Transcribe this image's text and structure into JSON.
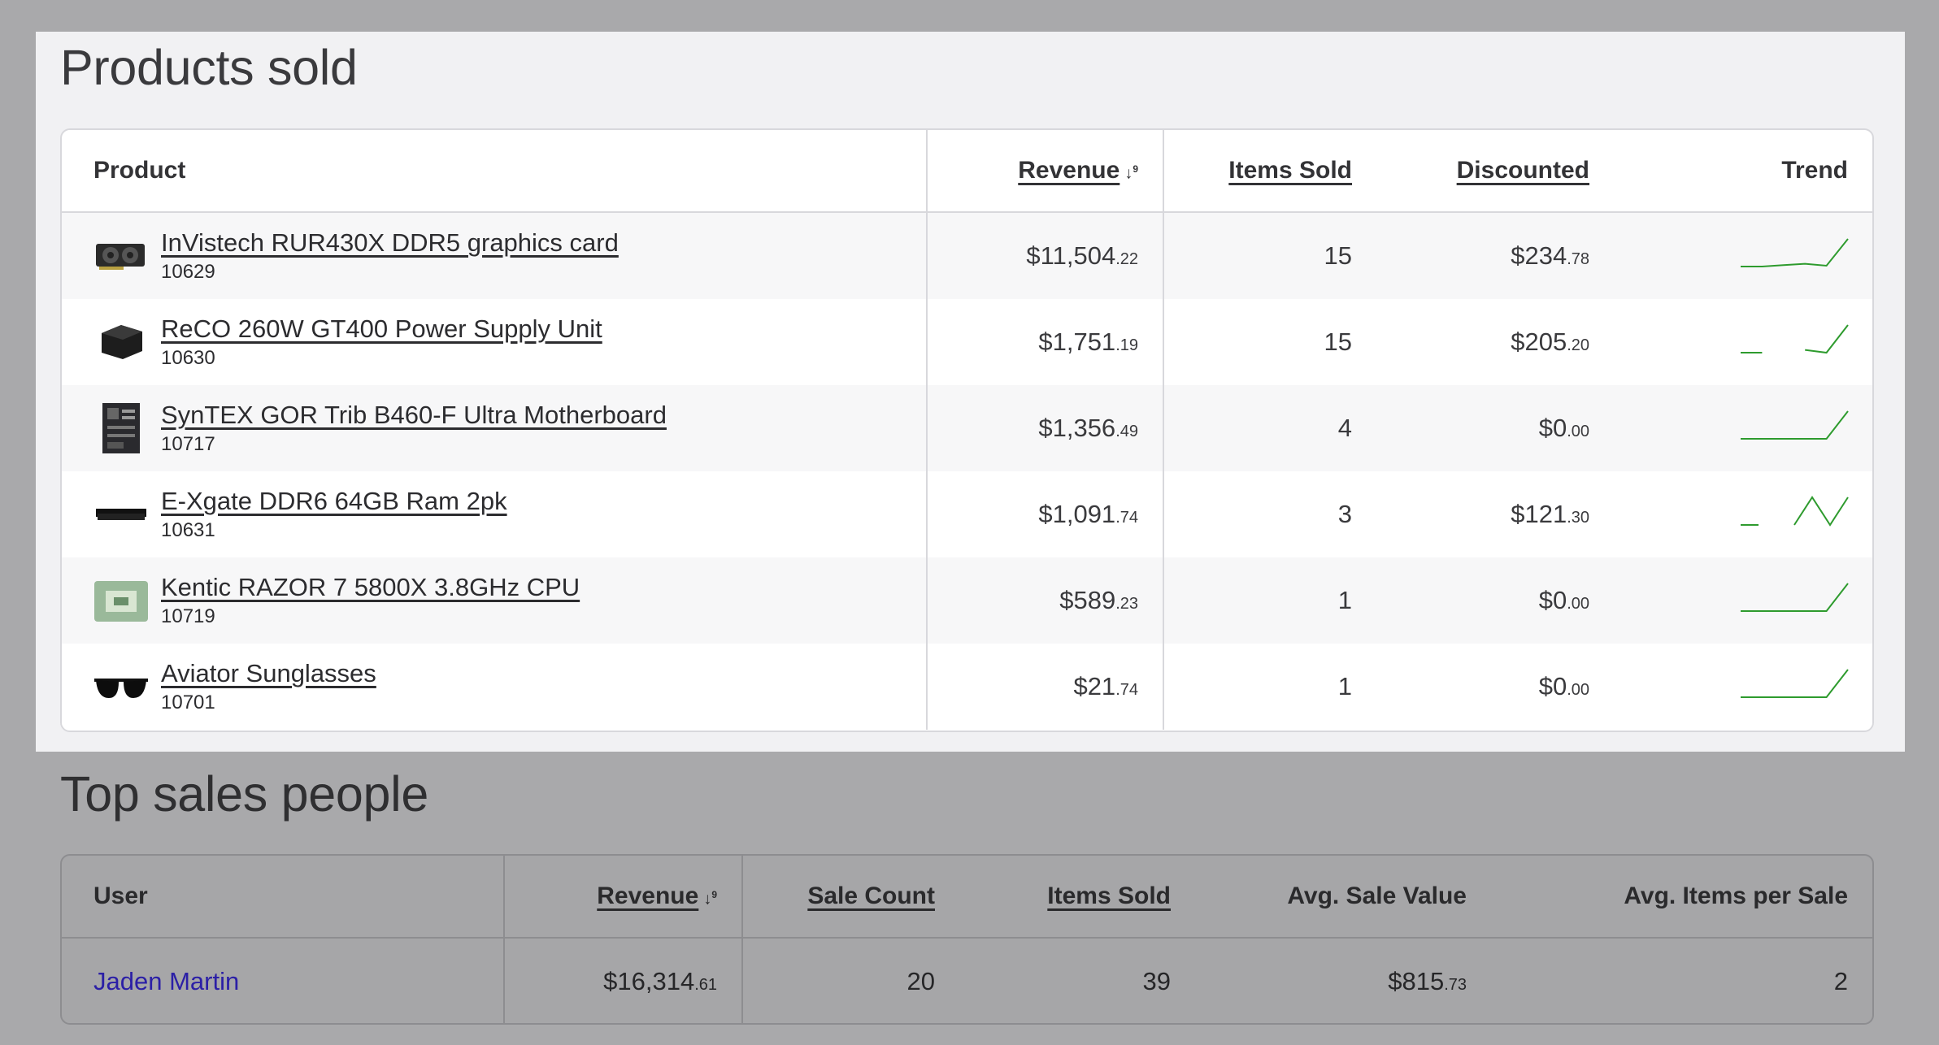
{
  "products_section": {
    "title": "Products sold",
    "columns": {
      "product": "Product",
      "revenue": "Revenue",
      "items_sold": "Items Sold",
      "discounted": "Discounted",
      "trend": "Trend"
    },
    "rows": [
      {
        "name": "InVistech RUR430X DDR5 graphics card",
        "id": "10629",
        "revenue_main": "$11,504",
        "revenue_cents": ".22",
        "items": "15",
        "disc_main": "$234",
        "disc_cents": ".78",
        "thumb_icon": "graphics-card-icon",
        "trend": [
          0,
          0,
          0.05,
          0.1,
          0.03,
          1
        ]
      },
      {
        "name": "ReCO 260W GT400 Power Supply Unit",
        "id": "10630",
        "revenue_main": "$1,751",
        "revenue_cents": ".19",
        "items": "15",
        "disc_main": "$205",
        "disc_cents": ".20",
        "thumb_icon": "power-supply-icon",
        "trend": [
          0,
          0,
          null,
          0.1,
          0,
          1
        ]
      },
      {
        "name": "SynTEX GOR Trib B460-F Ultra Motherboard",
        "id": "10717",
        "revenue_main": "$1,356",
        "revenue_cents": ".49",
        "items": "4",
        "disc_main": "$0",
        "disc_cents": ".00",
        "thumb_icon": "motherboard-icon",
        "trend": [
          0,
          0,
          0,
          0,
          0,
          1
        ]
      },
      {
        "name": "E-Xgate DDR6 64GB Ram 2pk",
        "id": "10631",
        "revenue_main": "$1,091",
        "revenue_cents": ".74",
        "items": "3",
        "disc_main": "$121",
        "disc_cents": ".30",
        "thumb_icon": "ram-icon",
        "trend": [
          0,
          0,
          null,
          0,
          1,
          0,
          1
        ]
      },
      {
        "name": "Kentic RAZOR 7 5800X 3.8GHz CPU",
        "id": "10719",
        "revenue_main": "$589",
        "revenue_cents": ".23",
        "items": "1",
        "disc_main": "$0",
        "disc_cents": ".00",
        "thumb_icon": "cpu-icon",
        "trend": [
          0,
          0,
          0,
          0,
          0,
          1
        ]
      },
      {
        "name": "Aviator Sunglasses",
        "id": "10701",
        "revenue_main": "$21",
        "revenue_cents": ".74",
        "items": "1",
        "disc_main": "$0",
        "disc_cents": ".00",
        "thumb_icon": "sunglasses-icon",
        "trend": [
          0,
          0,
          0,
          0,
          0,
          1
        ]
      }
    ]
  },
  "sales_section": {
    "title": "Top sales people",
    "columns": {
      "user": "User",
      "revenue": "Revenue",
      "sale_count": "Sale Count",
      "items_sold": "Items Sold",
      "avg_sale_value": "Avg. Sale Value",
      "avg_items": "Avg. Items per Sale"
    },
    "rows": [
      {
        "user": "Jaden Martin",
        "revenue_main": "$16,314",
        "revenue_cents": ".61",
        "sale_count": "20",
        "items_sold": "39",
        "avg_main": "$815",
        "avg_cents": ".73",
        "avg_items": "2"
      }
    ]
  },
  "colors": {
    "trend_line": "#2e9b2e",
    "link_blue": "#2b1fa6",
    "overlay": "#a9a9ab"
  },
  "icons": {
    "sort": "sort-numeric-desc-icon"
  }
}
